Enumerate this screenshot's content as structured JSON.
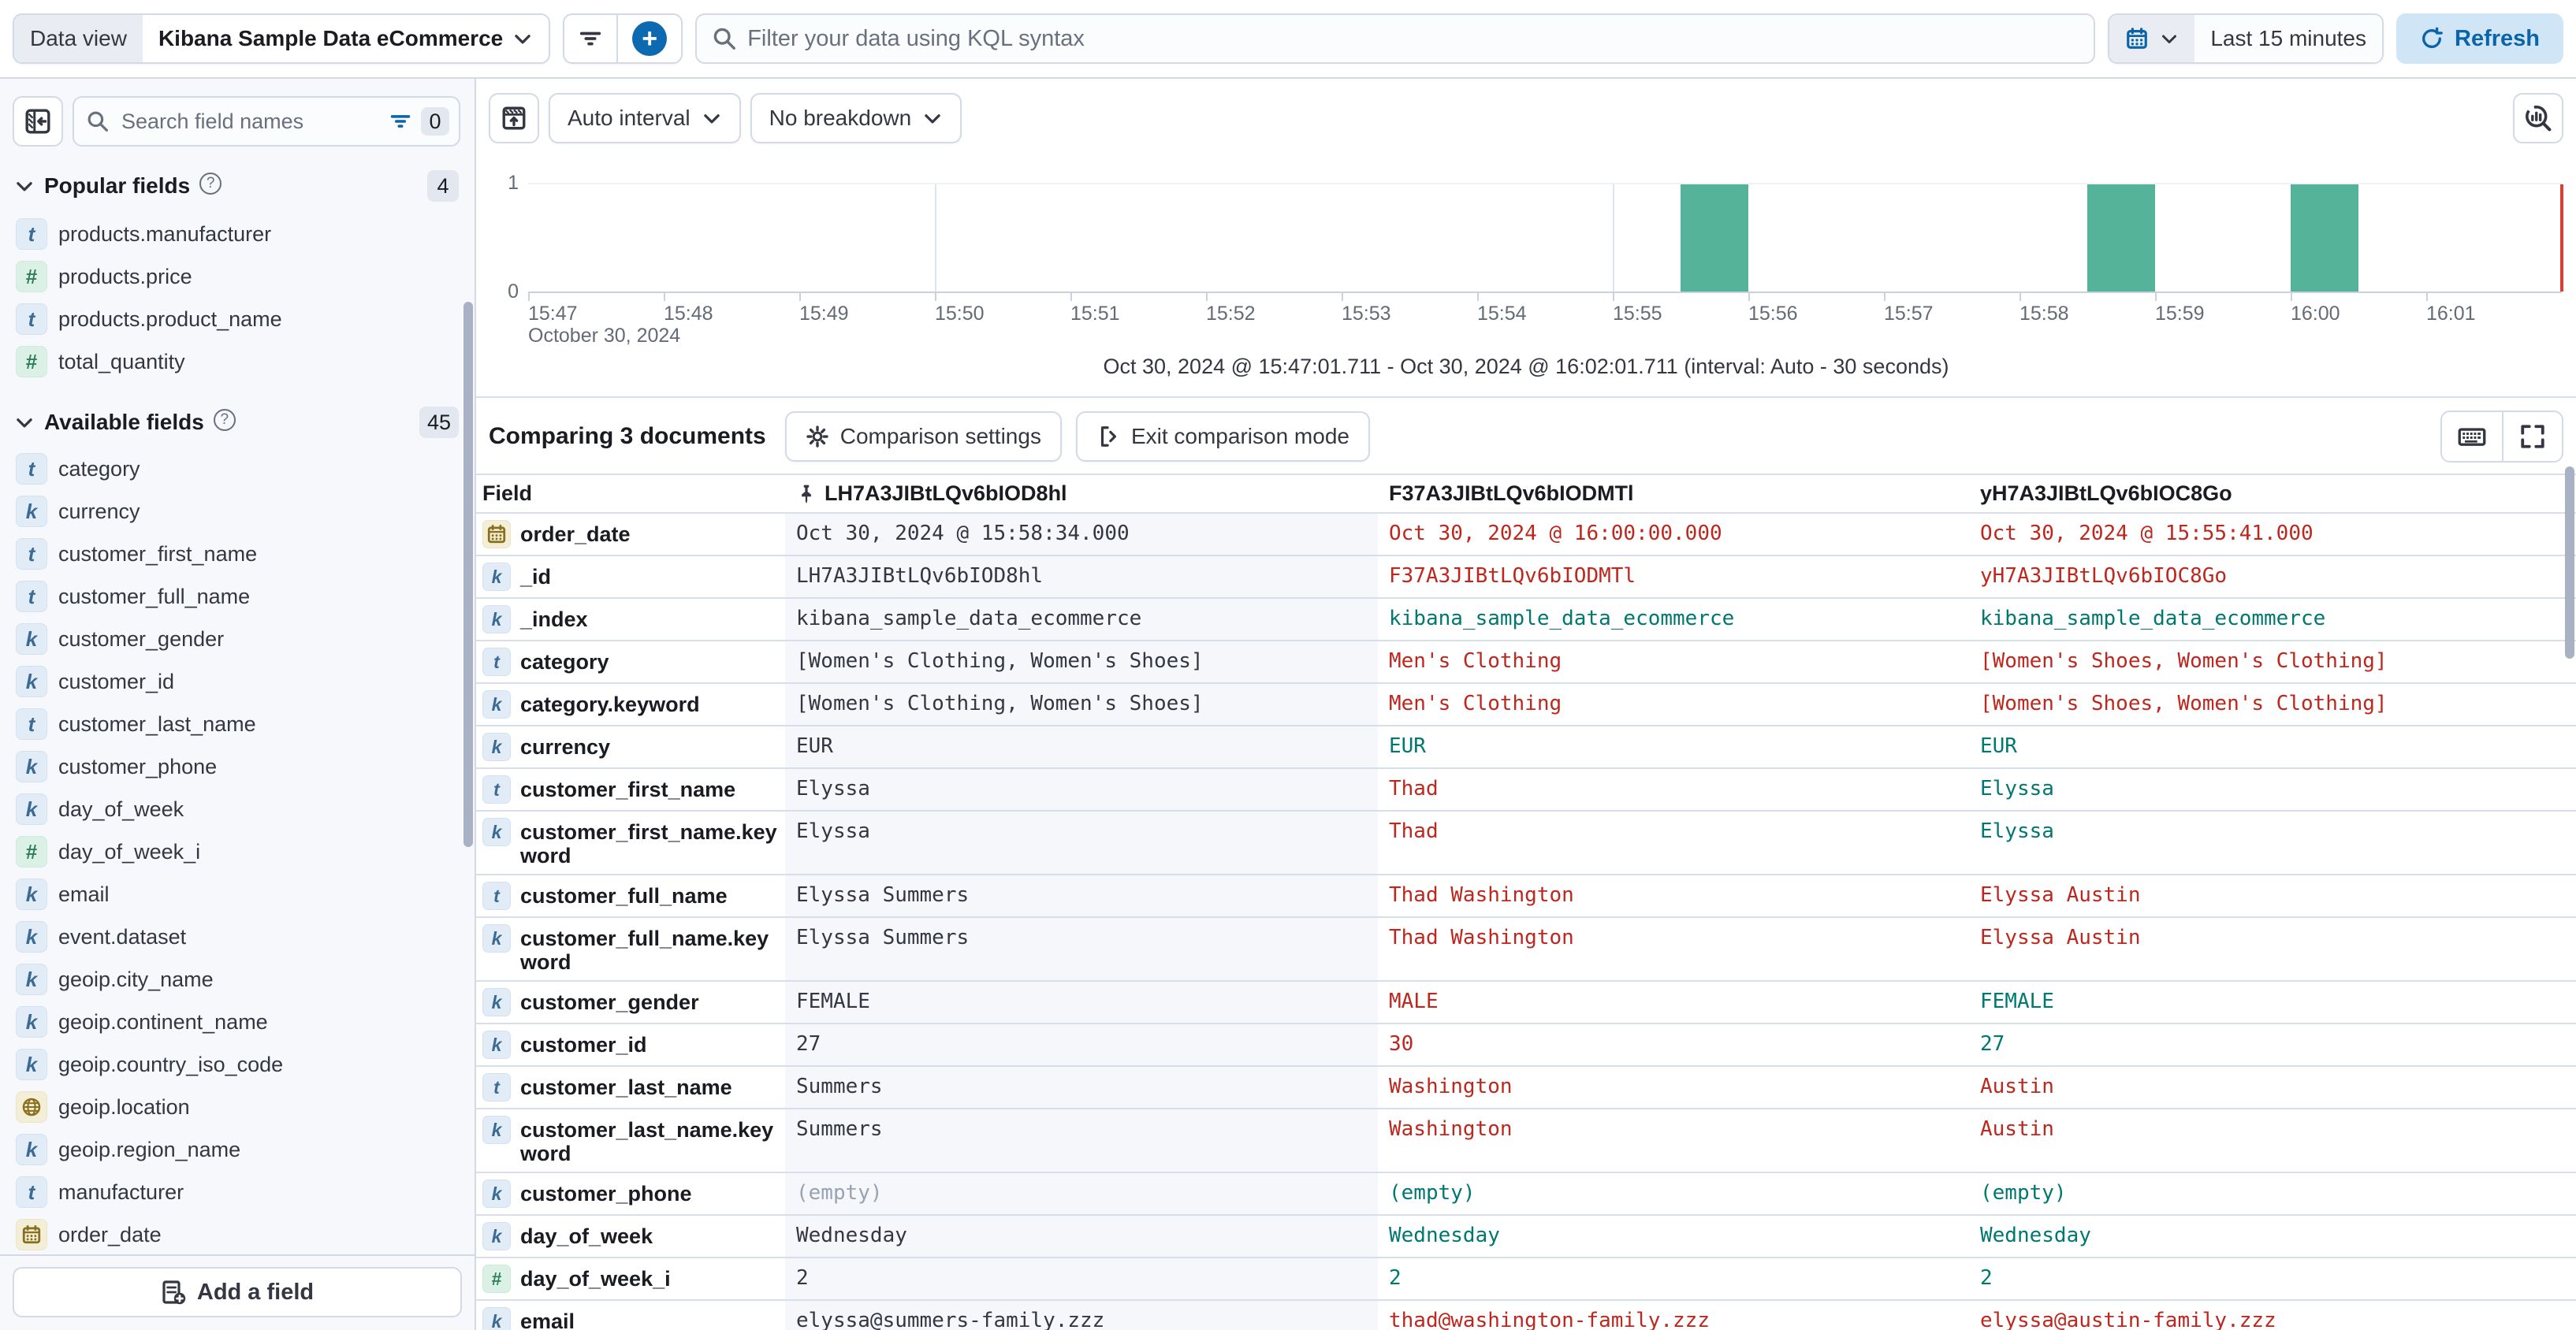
{
  "top_bar": {
    "data_view_label": "Data view",
    "data_view_value": "Kibana Sample Data eCommerce",
    "kql_placeholder": "Filter your data using KQL syntax",
    "time_range": "Last 15 minutes",
    "refresh_label": "Refresh"
  },
  "sidebar": {
    "search_placeholder": "Search field names",
    "filter_count": "0",
    "popular": {
      "label": "Popular fields",
      "count": "4",
      "items": [
        {
          "type": "text",
          "name": "products.manufacturer"
        },
        {
          "type": "number",
          "name": "products.price"
        },
        {
          "type": "text",
          "name": "products.product_name"
        },
        {
          "type": "number",
          "name": "total_quantity"
        }
      ]
    },
    "available": {
      "label": "Available fields",
      "count": "45",
      "items": [
        {
          "type": "text",
          "name": "category"
        },
        {
          "type": "keyword",
          "name": "currency"
        },
        {
          "type": "text",
          "name": "customer_first_name"
        },
        {
          "type": "text",
          "name": "customer_full_name"
        },
        {
          "type": "keyword",
          "name": "customer_gender"
        },
        {
          "type": "keyword",
          "name": "customer_id"
        },
        {
          "type": "text",
          "name": "customer_last_name"
        },
        {
          "type": "keyword",
          "name": "customer_phone"
        },
        {
          "type": "keyword",
          "name": "day_of_week"
        },
        {
          "type": "number",
          "name": "day_of_week_i"
        },
        {
          "type": "keyword",
          "name": "email"
        },
        {
          "type": "keyword",
          "name": "event.dataset"
        },
        {
          "type": "keyword",
          "name": "geoip.city_name"
        },
        {
          "type": "keyword",
          "name": "geoip.continent_name"
        },
        {
          "type": "keyword",
          "name": "geoip.country_iso_code"
        },
        {
          "type": "geo",
          "name": "geoip.location"
        },
        {
          "type": "keyword",
          "name": "geoip.region_name"
        },
        {
          "type": "text",
          "name": "manufacturer"
        },
        {
          "type": "date",
          "name": "order_date"
        }
      ]
    },
    "add_field_label": "Add a field"
  },
  "chart": {
    "controls": {
      "interval_label": "Auto interval",
      "breakdown_label": "No breakdown"
    },
    "caption": "Oct 30, 2024 @ 15:47:01.711 - Oct 30, 2024 @ 16:02:01.711 (interval: Auto - 30 seconds)",
    "histogram": {
      "type": "bar",
      "y_max_label": "1",
      "y_min_label": "0",
      "ylim": [
        0,
        1
      ],
      "domain_start": "15:47:00",
      "domain_end": "16:02:00",
      "x_ticks": [
        "15:47",
        "15:48",
        "15:49",
        "15:50",
        "15:51",
        "15:52",
        "15:53",
        "15:54",
        "15:55",
        "15:56",
        "15:57",
        "15:58",
        "15:59",
        "16:00",
        "16:01"
      ],
      "date_label": "October 30, 2024",
      "gridline_ticks": [
        "15:50",
        "15:55",
        "16:00"
      ],
      "interval_seconds": 30,
      "bar_color": "#54b399",
      "bars": [
        {
          "time": "15:55:30",
          "value": 1
        },
        {
          "time": "15:58:30",
          "value": 1
        },
        {
          "time": "16:00:00",
          "value": 1
        }
      ]
    }
  },
  "comparison": {
    "title": "Comparing 3 documents",
    "settings_label": "Comparison settings",
    "exit_label": "Exit comparison mode",
    "table": {
      "field_header": "Field",
      "docs": [
        {
          "id": "LH7A3JIBtLQv6bIOD8hl",
          "pinned": true
        },
        {
          "id": "F37A3JIBtLQv6bIODMTl",
          "pinned": false
        },
        {
          "id": "yH7A3JIBtLQv6bIOC8Go",
          "pinned": false
        }
      ],
      "rows": [
        {
          "field": "order_date",
          "type": "date",
          "cells": [
            {
              "t": "Oct 30, 2024 @ 15:58:34.000",
              "s": "base"
            },
            {
              "t": "Oct 30, 2024 @ 16:00:00.000",
              "s": "diff"
            },
            {
              "t": "Oct 30, 2024 @ 15:55:41.000",
              "s": "diff"
            }
          ]
        },
        {
          "field": "_id",
          "type": "keyword",
          "cells": [
            {
              "t": "LH7A3JIBtLQv6bIOD8hl",
              "s": "base"
            },
            {
              "t": "F37A3JIBtLQv6bIODMTl",
              "s": "diff"
            },
            {
              "t": "yH7A3JIBtLQv6bIOC8Go",
              "s": "diff"
            }
          ]
        },
        {
          "field": "_index",
          "type": "keyword",
          "cells": [
            {
              "t": "kibana_sample_data_ecommerce",
              "s": "base"
            },
            {
              "t": "kibana_sample_data_ecommerce",
              "s": "match"
            },
            {
              "t": "kibana_sample_data_ecommerce",
              "s": "match"
            }
          ]
        },
        {
          "field": "category",
          "type": "text",
          "cells": [
            {
              "t": "[Women's Clothing, Women's Shoes]",
              "s": "base"
            },
            {
              "t": "Men's Clothing",
              "s": "diff"
            },
            {
              "t": "[Women's Shoes, Women's Clothing]",
              "s": "diff"
            }
          ]
        },
        {
          "field": "category.keyword",
          "type": "keyword",
          "cells": [
            {
              "t": "[Women's Clothing, Women's Shoes]",
              "s": "base"
            },
            {
              "t": "Men's Clothing",
              "s": "diff"
            },
            {
              "t": "[Women's Shoes, Women's Clothing]",
              "s": "diff"
            }
          ]
        },
        {
          "field": "currency",
          "type": "keyword",
          "cells": [
            {
              "t": "EUR",
              "s": "base"
            },
            {
              "t": "EUR",
              "s": "match"
            },
            {
              "t": "EUR",
              "s": "match"
            }
          ]
        },
        {
          "field": "customer_first_name",
          "type": "text",
          "cells": [
            {
              "t": "Elyssa",
              "s": "base"
            },
            {
              "t": "Thad",
              "s": "diff"
            },
            {
              "t": "Elyssa",
              "s": "match"
            }
          ]
        },
        {
          "field": "customer_first_name.keyword",
          "type": "keyword",
          "cells": [
            {
              "t": "Elyssa",
              "s": "base"
            },
            {
              "t": "Thad",
              "s": "diff"
            },
            {
              "t": "Elyssa",
              "s": "match"
            }
          ]
        },
        {
          "field": "customer_full_name",
          "type": "text",
          "cells": [
            {
              "t": "Elyssa Summers",
              "s": "base"
            },
            {
              "t": "Thad Washington",
              "s": "diff"
            },
            {
              "t": "Elyssa Austin",
              "s": "diff"
            }
          ]
        },
        {
          "field": "customer_full_name.keyword",
          "type": "keyword",
          "cells": [
            {
              "t": "Elyssa Summers",
              "s": "base"
            },
            {
              "t": "Thad Washington",
              "s": "diff"
            },
            {
              "t": "Elyssa Austin",
              "s": "diff"
            }
          ]
        },
        {
          "field": "customer_gender",
          "type": "keyword",
          "cells": [
            {
              "t": "FEMALE",
              "s": "base"
            },
            {
              "t": "MALE",
              "s": "diff"
            },
            {
              "t": "FEMALE",
              "s": "match"
            }
          ]
        },
        {
          "field": "customer_id",
          "type": "keyword",
          "cells": [
            {
              "t": "27",
              "s": "base"
            },
            {
              "t": "30",
              "s": "diff"
            },
            {
              "t": "27",
              "s": "match"
            }
          ]
        },
        {
          "field": "customer_last_name",
          "type": "text",
          "cells": [
            {
              "t": "Summers",
              "s": "base"
            },
            {
              "t": "Washington",
              "s": "diff"
            },
            {
              "t": "Austin",
              "s": "diff"
            }
          ]
        },
        {
          "field": "customer_last_name.keyword",
          "type": "keyword",
          "cells": [
            {
              "t": "Summers",
              "s": "base"
            },
            {
              "t": "Washington",
              "s": "diff"
            },
            {
              "t": "Austin",
              "s": "diff"
            }
          ]
        },
        {
          "field": "customer_phone",
          "type": "keyword",
          "cells": [
            {
              "t": "(empty)",
              "s": "muted"
            },
            {
              "t": "(empty)",
              "s": "match"
            },
            {
              "t": "(empty)",
              "s": "match"
            }
          ]
        },
        {
          "field": "day_of_week",
          "type": "keyword",
          "cells": [
            {
              "t": "Wednesday",
              "s": "base"
            },
            {
              "t": "Wednesday",
              "s": "match"
            },
            {
              "t": "Wednesday",
              "s": "match"
            }
          ]
        },
        {
          "field": "day_of_week_i",
          "type": "number",
          "cells": [
            {
              "t": "2",
              "s": "base"
            },
            {
              "t": "2",
              "s": "match"
            },
            {
              "t": "2",
              "s": "match"
            }
          ]
        },
        {
          "field": "email",
          "type": "keyword",
          "cells": [
            {
              "t": "elyssa@summers-family.zzz",
              "s": "base"
            },
            {
              "t": "thad@washington-family.zzz",
              "s": "diff"
            },
            {
              "t": "elyssa@austin-family.zzz",
              "s": "diff"
            }
          ]
        }
      ]
    }
  }
}
